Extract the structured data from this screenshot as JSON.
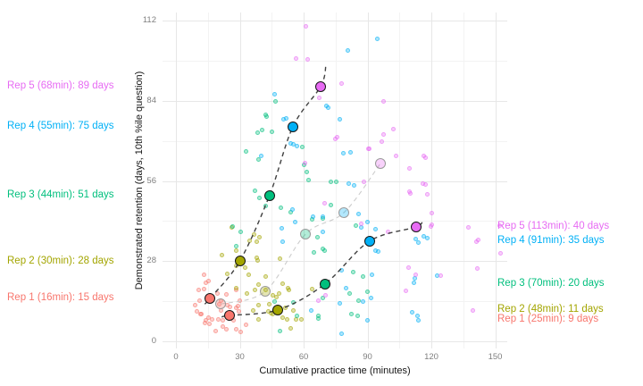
{
  "figure": {
    "background": "#ffffff"
  },
  "chart_data": {
    "type": "scatter",
    "title": "",
    "xlabel": "Cumulative practice time (minutes)",
    "ylabel": "Demonstrated retention (days, 10th %ile question)",
    "x_axis": {
      "ticks": [
        0,
        30,
        60,
        90,
        120,
        150
      ],
      "minor_ticks": [
        15,
        45,
        75,
        105,
        135
      ],
      "range": [
        -6,
        156
      ]
    },
    "y_axis": {
      "ticks": [
        0,
        28,
        56,
        84,
        112
      ],
      "minor_ticks": [
        14,
        42,
        70,
        98
      ],
      "range": [
        -2.5,
        115
      ]
    },
    "grid": "on",
    "legend": "none",
    "series": [
      {
        "name": "rep1-points",
        "color": "#F8766D",
        "points": [
          [
            10.6,
            17.8
          ],
          [
            11.2,
            14.1
          ],
          [
            9.2,
            12.8
          ],
          [
            9.7,
            10.5
          ],
          [
            11.7,
            9.5
          ],
          [
            11.8,
            9.4
          ],
          [
            13.3,
            18.3
          ],
          [
            13.9,
            20.6
          ],
          [
            15.5,
            21.2
          ],
          [
            13.4,
            23.1
          ],
          [
            13.9,
            7.2
          ],
          [
            13.8,
            6.3
          ],
          [
            15.2,
            8.4
          ],
          [
            15.9,
            6.2
          ],
          [
            16.9,
            7.6
          ],
          [
            18.7,
            3.7
          ],
          [
            19.4,
            16.7
          ],
          [
            19.7,
            7.8
          ],
          [
            20.3,
            13.1
          ],
          [
            21.0,
            10.9
          ],
          [
            21.0,
            14.3
          ],
          [
            22.0,
            5.1
          ],
          [
            22.2,
            7.2
          ],
          [
            23.6,
            4.3
          ],
          [
            23.9,
            12.6
          ],
          [
            23.5,
            16.3
          ],
          [
            25.3,
            12.1
          ],
          [
            26.9,
            7.4
          ],
          [
            28.1,
            4.3
          ],
          [
            28.3,
            11.7
          ],
          [
            29.0,
            12.2
          ],
          [
            29.4,
            10.6
          ],
          [
            29.8,
            14.3
          ],
          [
            28.5,
            17.8
          ],
          [
            30.5,
            3.4
          ],
          [
            33.0,
            5.7
          ]
        ]
      },
      {
        "name": "rep2-points",
        "color": "#A3A500",
        "points": [
          [
            21.7,
            30.0
          ],
          [
            24.3,
            23.7
          ],
          [
            26.4,
            39.8
          ],
          [
            28.3,
            26.3
          ],
          [
            28.5,
            31.8
          ],
          [
            28.5,
            18.7
          ],
          [
            32.3,
            25.9
          ],
          [
            34.0,
            23.4
          ],
          [
            34.8,
            35.2
          ],
          [
            36.5,
            37.4
          ],
          [
            37.8,
            34.9
          ],
          [
            37.8,
            29.3
          ],
          [
            39.4,
            36.5
          ],
          [
            38.3,
            28.2
          ],
          [
            36.1,
            10.9
          ],
          [
            38.6,
            12.5
          ],
          [
            37.3,
            18.1
          ],
          [
            42.1,
            22.5
          ],
          [
            39.0,
            19.9
          ],
          [
            42.1,
            18.0
          ],
          [
            43.8,
            13.1
          ],
          [
            45.6,
            16.2
          ],
          [
            47.0,
            15.5
          ],
          [
            48.3,
            16.7
          ],
          [
            50.3,
            20.0
          ],
          [
            52.5,
            18.7
          ],
          [
            53.0,
            17.8
          ],
          [
            51.2,
            11.8
          ],
          [
            43.2,
            10.5
          ],
          [
            44.6,
            9.7
          ],
          [
            50.2,
            8.4
          ],
          [
            52.3,
            7.6
          ],
          [
            38.9,
            7.6
          ],
          [
            45.3,
            9.4
          ],
          [
            33.2,
            16.8
          ],
          [
            48.7,
            29.0
          ],
          [
            63.8,
            18.4
          ],
          [
            54.0,
            4.5
          ],
          [
            55.0,
            10.9
          ],
          [
            56.6,
            7.8
          ],
          [
            58.8,
            7.8
          ]
        ]
      },
      {
        "name": "rep3-points",
        "color": "#00BF7D",
        "points": [
          [
            37.3,
            52.7
          ],
          [
            39.4,
            50.2
          ],
          [
            42.0,
            47.4
          ],
          [
            42.4,
            78.6
          ],
          [
            46.6,
            83.7
          ],
          [
            42.2,
            79.1
          ],
          [
            40.6,
            73.8
          ],
          [
            45.2,
            73.1
          ],
          [
            38.2,
            72.7
          ],
          [
            32.9,
            66.3
          ],
          [
            39.0,
            63.5
          ],
          [
            59.2,
            68.0
          ],
          [
            60.0,
            61.7
          ],
          [
            62.4,
            56.2
          ],
          [
            61.3,
            59.0
          ],
          [
            75.4,
            55.7
          ],
          [
            72.6,
            55.8
          ],
          [
            49.1,
            46.5
          ],
          [
            53.7,
            45.0
          ],
          [
            63.9,
            42.7
          ],
          [
            69.1,
            43.0
          ],
          [
            72.9,
            47.6
          ],
          [
            84.5,
            40.3
          ],
          [
            66.3,
            36.3
          ],
          [
            68.8,
            32.3
          ],
          [
            65.0,
            31.0
          ],
          [
            69.7,
            31.8
          ],
          [
            83.1,
            24.3
          ],
          [
            87.7,
            22.6
          ],
          [
            26.6,
            40.0
          ],
          [
            28.3,
            33.1
          ],
          [
            30.2,
            38.1
          ],
          [
            46.2,
            14.0
          ],
          [
            55.0,
            13.7
          ],
          [
            81.5,
            16.7
          ],
          [
            89.8,
            17.3
          ],
          [
            85.9,
            14.1
          ],
          [
            69.1,
            15.2
          ],
          [
            66.7,
            9.0
          ],
          [
            82.4,
            9.5
          ],
          [
            67.0,
            8.1
          ],
          [
            56.9,
            9.0
          ],
          [
            48.8,
            3.7
          ],
          [
            85.2,
            9.0
          ]
        ]
      },
      {
        "name": "rep4-points",
        "color": "#00B0F6",
        "points": [
          [
            94.8,
            105.7
          ],
          [
            80.7,
            101.6
          ],
          [
            46.2,
            86.3
          ],
          [
            50.4,
            77.6
          ],
          [
            51.6,
            77.9
          ],
          [
            54.1,
            69.0
          ],
          [
            55.2,
            68.7
          ],
          [
            56.8,
            68.3
          ],
          [
            40.0,
            64.9
          ],
          [
            70.8,
            82.2
          ],
          [
            71.7,
            81.6
          ],
          [
            76.8,
            77.4
          ],
          [
            78.6,
            65.7
          ],
          [
            81.8,
            66.1
          ],
          [
            83.5,
            54.5
          ],
          [
            81.0,
            55.2
          ],
          [
            54.6,
            45.9
          ],
          [
            64.2,
            43.4
          ],
          [
            68.8,
            43.4
          ],
          [
            69.2,
            38.1
          ],
          [
            85.6,
            44.4
          ],
          [
            89.9,
            41.7
          ],
          [
            93.7,
            39.1
          ],
          [
            49.9,
            39.4
          ],
          [
            56.1,
            41.7
          ],
          [
            86.9,
            39.9
          ],
          [
            91.9,
            23.4
          ],
          [
            93.7,
            31.6
          ],
          [
            95.1,
            31.3
          ],
          [
            116.5,
            36.6
          ],
          [
            118.3,
            35.9
          ],
          [
            112.5,
            35.6
          ],
          [
            114.1,
            34.6
          ],
          [
            112.0,
            20.3
          ],
          [
            122.5,
            22.8
          ],
          [
            78.0,
            24.9
          ],
          [
            112.2,
            21.9
          ],
          [
            80.1,
            18.7
          ],
          [
            91.6,
            15.2
          ],
          [
            76.9,
            13.2
          ],
          [
            87.7,
            14.0
          ],
          [
            110.9,
            10.0
          ],
          [
            89.9,
            7.4
          ],
          [
            114.0,
            7.2
          ],
          [
            63.6,
            10.9
          ],
          [
            78.0,
            2.8
          ],
          [
            113.3,
            9.0
          ],
          [
            50.3,
            34.9
          ]
        ]
      },
      {
        "name": "rep5-points",
        "color": "#E76BF3",
        "points": [
          [
            61.0,
            110.0
          ],
          [
            56.5,
            98.7
          ],
          [
            62.0,
            98.3
          ],
          [
            78.0,
            90.1
          ],
          [
            67.3,
            85.0
          ],
          [
            97.4,
            83.9
          ],
          [
            75.0,
            70.8
          ],
          [
            97.5,
            72.2
          ],
          [
            96.5,
            69.6
          ],
          [
            90.8,
            67.2
          ],
          [
            102.0,
            74.0
          ],
          [
            90.6,
            67.1
          ],
          [
            75.9,
            71.4
          ],
          [
            116.5,
            64.8
          ],
          [
            109.5,
            60.3
          ],
          [
            117.2,
            54.9
          ],
          [
            115.8,
            55.2
          ],
          [
            109.5,
            52.4
          ],
          [
            118.3,
            51.2
          ],
          [
            110.1,
            51.6
          ],
          [
            103.2,
            64.6
          ],
          [
            117.1,
            64.0
          ],
          [
            120.0,
            44.9
          ],
          [
            99.5,
            38.1
          ],
          [
            86.9,
            40.9
          ],
          [
            69.7,
            48.2
          ],
          [
            119.6,
            40.1
          ],
          [
            137.5,
            39.8
          ],
          [
            142.0,
            35.3
          ],
          [
            151.9,
            40.3
          ],
          [
            152.3,
            30.8
          ],
          [
            120.0,
            40.6
          ],
          [
            141.0,
            34.9
          ],
          [
            109.2,
            25.6
          ],
          [
            141.4,
            25.4
          ],
          [
            112.5,
            23.1
          ],
          [
            124.3,
            23.0
          ],
          [
            108.1,
            17.6
          ],
          [
            70.3,
            16.2
          ],
          [
            67.1,
            14.3
          ],
          [
            139.7,
            10.7
          ],
          [
            60.8,
            62.1
          ],
          [
            88.5,
            55.8
          ]
        ]
      }
    ],
    "rep_colors": [
      "#F8766D",
      "#A3A500",
      "#00BF7D",
      "#00B0F6",
      "#E76BF3"
    ],
    "trajectories": [
      {
        "name": "fast-learner",
        "style": "dark-dashed",
        "marker": "solid",
        "reps": [
          {
            "rep": 1,
            "min": 16,
            "days": 15
          },
          {
            "rep": 2,
            "min": 30,
            "days": 28
          },
          {
            "rep": 3,
            "min": 44,
            "days": 51
          },
          {
            "rep": 4,
            "min": 55,
            "days": 75
          },
          {
            "rep": 5,
            "min": 68,
            "days": 89
          }
        ],
        "ext_before": [
          13.5,
          13
        ],
        "ext_after": [
          70.5,
          96.5
        ]
      },
      {
        "name": "median-learner",
        "style": "faint-dashed",
        "marker": "pale",
        "reps": [
          {
            "rep": 1,
            "min": 21,
            "days": 13
          },
          {
            "rep": 2,
            "min": 42,
            "days": 17.5
          },
          {
            "rep": 3,
            "min": 61,
            "days": 37.5
          },
          {
            "rep": 4,
            "min": 79,
            "days": 45
          },
          {
            "rep": 5,
            "min": 96,
            "days": 62
          }
        ]
      },
      {
        "name": "slow-learner",
        "style": "dark-dashed",
        "marker": "solid",
        "reps": [
          {
            "rep": 1,
            "min": 25,
            "days": 9
          },
          {
            "rep": 2,
            "min": 48,
            "days": 11
          },
          {
            "rep": 3,
            "min": 70,
            "days": 20
          },
          {
            "rep": 4,
            "min": 91,
            "days": 35
          },
          {
            "rep": 5,
            "min": 113,
            "days": 40
          }
        ],
        "ext_before": [
          21.5,
          8.5
        ],
        "ext_after": [
          115.5,
          42.5
        ]
      }
    ],
    "annotations": {
      "left": [
        {
          "text": "Rep 5 (68min): 89 days",
          "color": "#E76BF3",
          "days": 89
        },
        {
          "text": "Rep 4 (55min): 75 days",
          "color": "#00B0F6",
          "days": 75
        },
        {
          "text": "Rep 3 (44min): 51 days",
          "color": "#00BF7D",
          "days": 51
        },
        {
          "text": "Rep 2 (30min): 28 days",
          "color": "#A3A500",
          "days": 28
        },
        {
          "text": "Rep 1 (16min): 15 days",
          "color": "#F8766D",
          "days": 15
        }
      ],
      "right": [
        {
          "text": "Rep 5 (113min): 40 days",
          "color": "#E76BF3",
          "days": 40
        },
        {
          "text": "Rep 4 (91min): 35 days",
          "color": "#00B0F6",
          "days": 35
        },
        {
          "text": "Rep 3 (70min): 20 days",
          "color": "#00BF7D",
          "days": 20
        },
        {
          "text": "Rep 2 (48min): 11 days",
          "color": "#A3A500",
          "days": 11
        },
        {
          "text": "Rep 1 (25min): 9 days",
          "color": "#F8766D",
          "days": 9
        }
      ]
    }
  }
}
